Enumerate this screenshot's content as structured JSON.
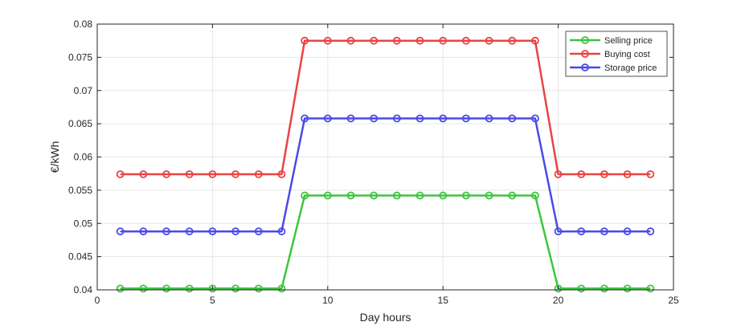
{
  "chart_data": {
    "type": "line",
    "xlabel": "Day hours",
    "ylabel": "€/kWh",
    "xlim": [
      0,
      25
    ],
    "ylim": [
      0.04,
      0.08
    ],
    "xticks": [
      "0",
      "5",
      "10",
      "15",
      "20",
      "25"
    ],
    "yticks": [
      "0.04",
      "0.045",
      "0.05",
      "0.055",
      "0.06",
      "0.065",
      "0.07",
      "0.075",
      "0.08"
    ],
    "grid": true,
    "legend_position": "top-right",
    "x": [
      1,
      2,
      3,
      4,
      5,
      6,
      7,
      8,
      9,
      10,
      11,
      12,
      13,
      14,
      15,
      16,
      17,
      18,
      19,
      20,
      21,
      22,
      23,
      24
    ],
    "series": [
      {
        "name": "Selling price",
        "color": "#3fc43f",
        "marker": "circle",
        "values": [
          0.0402,
          0.0402,
          0.0402,
          0.0402,
          0.0402,
          0.0402,
          0.0402,
          0.0402,
          0.0542,
          0.0542,
          0.0542,
          0.0542,
          0.0542,
          0.0542,
          0.0542,
          0.0542,
          0.0542,
          0.0542,
          0.0542,
          0.0402,
          0.0402,
          0.0402,
          0.0402,
          0.0402
        ]
      },
      {
        "name": "Buying cost",
        "color": "#e84444",
        "marker": "circle",
        "values": [
          0.0574,
          0.0574,
          0.0574,
          0.0574,
          0.0574,
          0.0574,
          0.0574,
          0.0574,
          0.0775,
          0.0775,
          0.0775,
          0.0775,
          0.0775,
          0.0775,
          0.0775,
          0.0775,
          0.0775,
          0.0775,
          0.0775,
          0.0574,
          0.0574,
          0.0574,
          0.0574,
          0.0574
        ]
      },
      {
        "name": "Storage price",
        "color": "#4a4ae8",
        "marker": "circle",
        "values": [
          0.0488,
          0.0488,
          0.0488,
          0.0488,
          0.0488,
          0.0488,
          0.0488,
          0.0488,
          0.0658,
          0.0658,
          0.0658,
          0.0658,
          0.0658,
          0.0658,
          0.0658,
          0.0658,
          0.0658,
          0.0658,
          0.0658,
          0.0488,
          0.0488,
          0.0488,
          0.0488,
          0.0488
        ]
      }
    ]
  }
}
